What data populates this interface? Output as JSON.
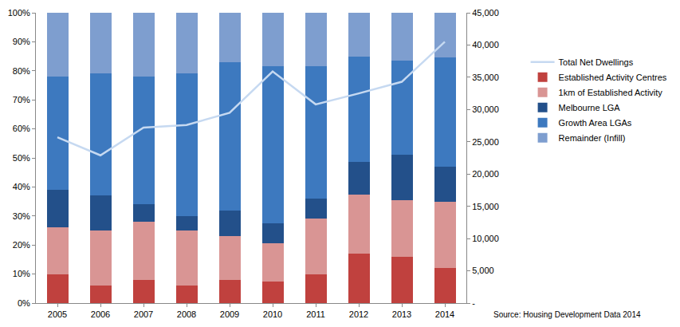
{
  "chart_data": {
    "type": "bar",
    "stacked": true,
    "grid": false,
    "legend": "right",
    "categories": [
      "2005",
      "2006",
      "2007",
      "2008",
      "2009",
      "2010",
      "2011",
      "2012",
      "2013",
      "2014"
    ],
    "ylim": [
      0,
      100
    ],
    "yticks": [
      {
        "value": 0,
        "label": "0%"
      },
      {
        "value": 10,
        "label": "10%"
      },
      {
        "value": 20,
        "label": "20%"
      },
      {
        "value": 30,
        "label": "30%"
      },
      {
        "value": 40,
        "label": "40%"
      },
      {
        "value": 50,
        "label": "50%"
      },
      {
        "value": 60,
        "label": "60%"
      },
      {
        "value": 70,
        "label": "70%"
      },
      {
        "value": 80,
        "label": "80%"
      },
      {
        "value": 90,
        "label": "90%"
      },
      {
        "value": 100,
        "label": "100%"
      }
    ],
    "y2lim": [
      0,
      45000
    ],
    "y2ticks": [
      {
        "value": 0,
        "label": "-"
      },
      {
        "value": 5000,
        "label": "5,000"
      },
      {
        "value": 10000,
        "label": "10,000"
      },
      {
        "value": 15000,
        "label": "15,000"
      },
      {
        "value": 20000,
        "label": "20,000"
      },
      {
        "value": 25000,
        "label": "25,000"
      },
      {
        "value": 30000,
        "label": "30,000"
      },
      {
        "value": 35000,
        "label": "35,000"
      },
      {
        "value": 40000,
        "label": "40,000"
      },
      {
        "value": 45000,
        "label": "45,000"
      }
    ],
    "series": [
      {
        "name": "Established Activity Centres",
        "type": "bar",
        "color": "#c0413e",
        "values": [
          10,
          6,
          8,
          6,
          8,
          7.5,
          10,
          17,
          16,
          12
        ]
      },
      {
        "name": "1km of Established Activity",
        "type": "bar",
        "color": "#d99594",
        "values": [
          16,
          19,
          20,
          19,
          15,
          13,
          19,
          20.5,
          19.5,
          23
        ]
      },
      {
        "name": "Melbourne LGA",
        "type": "bar",
        "color": "#23508a",
        "values": [
          13,
          12,
          6,
          5,
          9,
          7,
          7,
          11,
          15.5,
          12
        ]
      },
      {
        "name": "Growth Area LGAs",
        "type": "bar",
        "color": "#3d79bf",
        "values": [
          39,
          42,
          44,
          49,
          51,
          54,
          45.5,
          36.5,
          32.5,
          37.5
        ]
      },
      {
        "name": "Remainder (Infill)",
        "type": "bar",
        "color": "#7e9ecf",
        "values": [
          22,
          21,
          22,
          21,
          17,
          18.5,
          18.5,
          15,
          16.5,
          15.5
        ]
      },
      {
        "name": "Total Net Dwellings",
        "type": "line",
        "axis": "y2",
        "color": "#c6d9f1",
        "values": [
          25700,
          22900,
          27200,
          27600,
          29500,
          35900,
          30800,
          32500,
          34300,
          40500
        ]
      }
    ],
    "annotations": [
      "Source: Housing Development Data 2014"
    ]
  }
}
